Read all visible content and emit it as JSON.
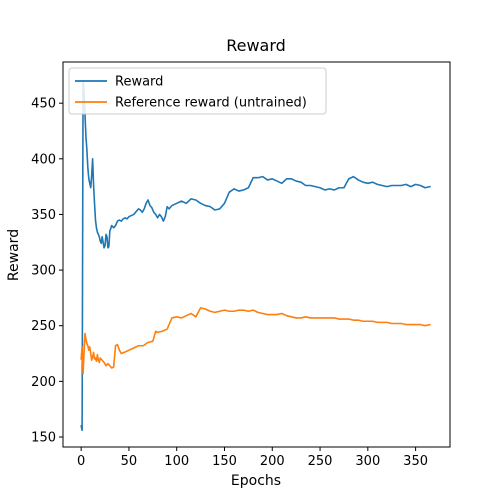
{
  "chart_data": {
    "type": "line",
    "title": "Reward",
    "xlabel": "Epochs",
    "ylabel": "Reward",
    "xlim": [
      -19,
      386
    ],
    "ylim": [
      141,
      487
    ],
    "xticks": [
      0,
      50,
      100,
      150,
      200,
      250,
      300,
      350
    ],
    "yticks": [
      150,
      200,
      250,
      300,
      350,
      400,
      450
    ],
    "grid": false,
    "legend_position": "upper-left",
    "series": [
      {
        "name": "Reward",
        "color": "#1f77b4",
        "points": [
          [
            0,
            160
          ],
          [
            1,
            156
          ],
          [
            2,
            470
          ],
          [
            3,
            460
          ],
          [
            4,
            440
          ],
          [
            5,
            420
          ],
          [
            6,
            408
          ],
          [
            7,
            392
          ],
          [
            8,
            382
          ],
          [
            9,
            378
          ],
          [
            10,
            374
          ],
          [
            11,
            385
          ],
          [
            12,
            400
          ],
          [
            13,
            376
          ],
          [
            14,
            360
          ],
          [
            15,
            345
          ],
          [
            16,
            338
          ],
          [
            17,
            334
          ],
          [
            18,
            332
          ],
          [
            19,
            330
          ],
          [
            20,
            326
          ],
          [
            21,
            324
          ],
          [
            22,
            330
          ],
          [
            23,
            325
          ],
          [
            24,
            320
          ],
          [
            25,
            322
          ],
          [
            26,
            332
          ],
          [
            27,
            330
          ],
          [
            28,
            320
          ],
          [
            29,
            321
          ],
          [
            30,
            335
          ],
          [
            32,
            340
          ],
          [
            34,
            338
          ],
          [
            36,
            340
          ],
          [
            38,
            344
          ],
          [
            40,
            345
          ],
          [
            42,
            344
          ],
          [
            44,
            346
          ],
          [
            46,
            347
          ],
          [
            48,
            346
          ],
          [
            50,
            348
          ],
          [
            55,
            350
          ],
          [
            60,
            355
          ],
          [
            62,
            354
          ],
          [
            64,
            352
          ],
          [
            66,
            355
          ],
          [
            68,
            360
          ],
          [
            70,
            363
          ],
          [
            72,
            358
          ],
          [
            74,
            356
          ],
          [
            76,
            352
          ],
          [
            78,
            350
          ],
          [
            80,
            347
          ],
          [
            82,
            350
          ],
          [
            84,
            348
          ],
          [
            86,
            344
          ],
          [
            88,
            348
          ],
          [
            90,
            357
          ],
          [
            92,
            355
          ],
          [
            95,
            358
          ],
          [
            100,
            360
          ],
          [
            105,
            362
          ],
          [
            110,
            360
          ],
          [
            115,
            364
          ],
          [
            120,
            363
          ],
          [
            125,
            360
          ],
          [
            130,
            358
          ],
          [
            135,
            357
          ],
          [
            140,
            354
          ],
          [
            145,
            355
          ],
          [
            150,
            360
          ],
          [
            155,
            370
          ],
          [
            160,
            373
          ],
          [
            165,
            371
          ],
          [
            170,
            372
          ],
          [
            175,
            374
          ],
          [
            180,
            383
          ],
          [
            185,
            383
          ],
          [
            190,
            384
          ],
          [
            195,
            381
          ],
          [
            200,
            382
          ],
          [
            205,
            380
          ],
          [
            210,
            378
          ],
          [
            215,
            382
          ],
          [
            220,
            382
          ],
          [
            225,
            380
          ],
          [
            230,
            379
          ],
          [
            235,
            376
          ],
          [
            240,
            376
          ],
          [
            245,
            375
          ],
          [
            250,
            374
          ],
          [
            255,
            372
          ],
          [
            260,
            373
          ],
          [
            265,
            372
          ],
          [
            270,
            374
          ],
          [
            275,
            374
          ],
          [
            280,
            382
          ],
          [
            285,
            384
          ],
          [
            290,
            381
          ],
          [
            295,
            379
          ],
          [
            300,
            378
          ],
          [
            305,
            379
          ],
          [
            310,
            377
          ],
          [
            315,
            376
          ],
          [
            320,
            375
          ],
          [
            325,
            376
          ],
          [
            330,
            376
          ],
          [
            335,
            376
          ],
          [
            340,
            377
          ],
          [
            345,
            375
          ],
          [
            350,
            377
          ],
          [
            355,
            376
          ],
          [
            360,
            374
          ],
          [
            365,
            375
          ]
        ]
      },
      {
        "name": "Reference reward (untrained)",
        "color": "#ff7f0e",
        "points": [
          [
            0,
            220
          ],
          [
            1,
            231
          ],
          [
            2,
            207
          ],
          [
            3,
            225
          ],
          [
            4,
            243
          ],
          [
            5,
            238
          ],
          [
            6,
            234
          ],
          [
            7,
            232
          ],
          [
            8,
            228
          ],
          [
            9,
            231
          ],
          [
            10,
            225
          ],
          [
            11,
            219
          ],
          [
            12,
            222
          ],
          [
            13,
            226
          ],
          [
            14,
            220
          ],
          [
            15,
            221
          ],
          [
            16,
            218
          ],
          [
            17,
            224
          ],
          [
            18,
            219
          ],
          [
            19,
            217
          ],
          [
            20,
            221
          ],
          [
            22,
            219
          ],
          [
            24,
            217
          ],
          [
            26,
            214
          ],
          [
            28,
            216
          ],
          [
            30,
            214
          ],
          [
            32,
            212
          ],
          [
            34,
            213
          ],
          [
            36,
            232
          ],
          [
            38,
            233
          ],
          [
            40,
            228
          ],
          [
            42,
            225
          ],
          [
            45,
            226
          ],
          [
            50,
            228
          ],
          [
            55,
            230
          ],
          [
            60,
            232
          ],
          [
            65,
            232
          ],
          [
            70,
            235
          ],
          [
            75,
            236
          ],
          [
            78,
            245
          ],
          [
            80,
            244
          ],
          [
            85,
            245
          ],
          [
            90,
            247
          ],
          [
            95,
            257
          ],
          [
            100,
            258
          ],
          [
            105,
            257
          ],
          [
            110,
            259
          ],
          [
            115,
            261
          ],
          [
            120,
            258
          ],
          [
            125,
            266
          ],
          [
            130,
            265
          ],
          [
            135,
            263
          ],
          [
            140,
            262
          ],
          [
            145,
            263
          ],
          [
            150,
            264
          ],
          [
            155,
            263
          ],
          [
            160,
            263
          ],
          [
            165,
            264
          ],
          [
            170,
            264
          ],
          [
            175,
            263
          ],
          [
            180,
            264
          ],
          [
            185,
            262
          ],
          [
            190,
            261
          ],
          [
            195,
            260
          ],
          [
            200,
            260
          ],
          [
            205,
            260
          ],
          [
            210,
            261
          ],
          [
            215,
            259
          ],
          [
            220,
            258
          ],
          [
            225,
            257
          ],
          [
            230,
            257
          ],
          [
            235,
            258
          ],
          [
            240,
            257
          ],
          [
            245,
            257
          ],
          [
            250,
            257
          ],
          [
            255,
            257
          ],
          [
            260,
            257
          ],
          [
            265,
            257
          ],
          [
            270,
            256
          ],
          [
            275,
            256
          ],
          [
            280,
            256
          ],
          [
            285,
            255
          ],
          [
            290,
            255
          ],
          [
            295,
            254
          ],
          [
            300,
            254
          ],
          [
            305,
            254
          ],
          [
            310,
            253
          ],
          [
            315,
            253
          ],
          [
            320,
            253
          ],
          [
            325,
            252
          ],
          [
            330,
            252
          ],
          [
            335,
            252
          ],
          [
            340,
            251
          ],
          [
            345,
            251
          ],
          [
            350,
            251
          ],
          [
            355,
            251
          ],
          [
            360,
            250
          ],
          [
            365,
            251
          ]
        ]
      }
    ]
  }
}
